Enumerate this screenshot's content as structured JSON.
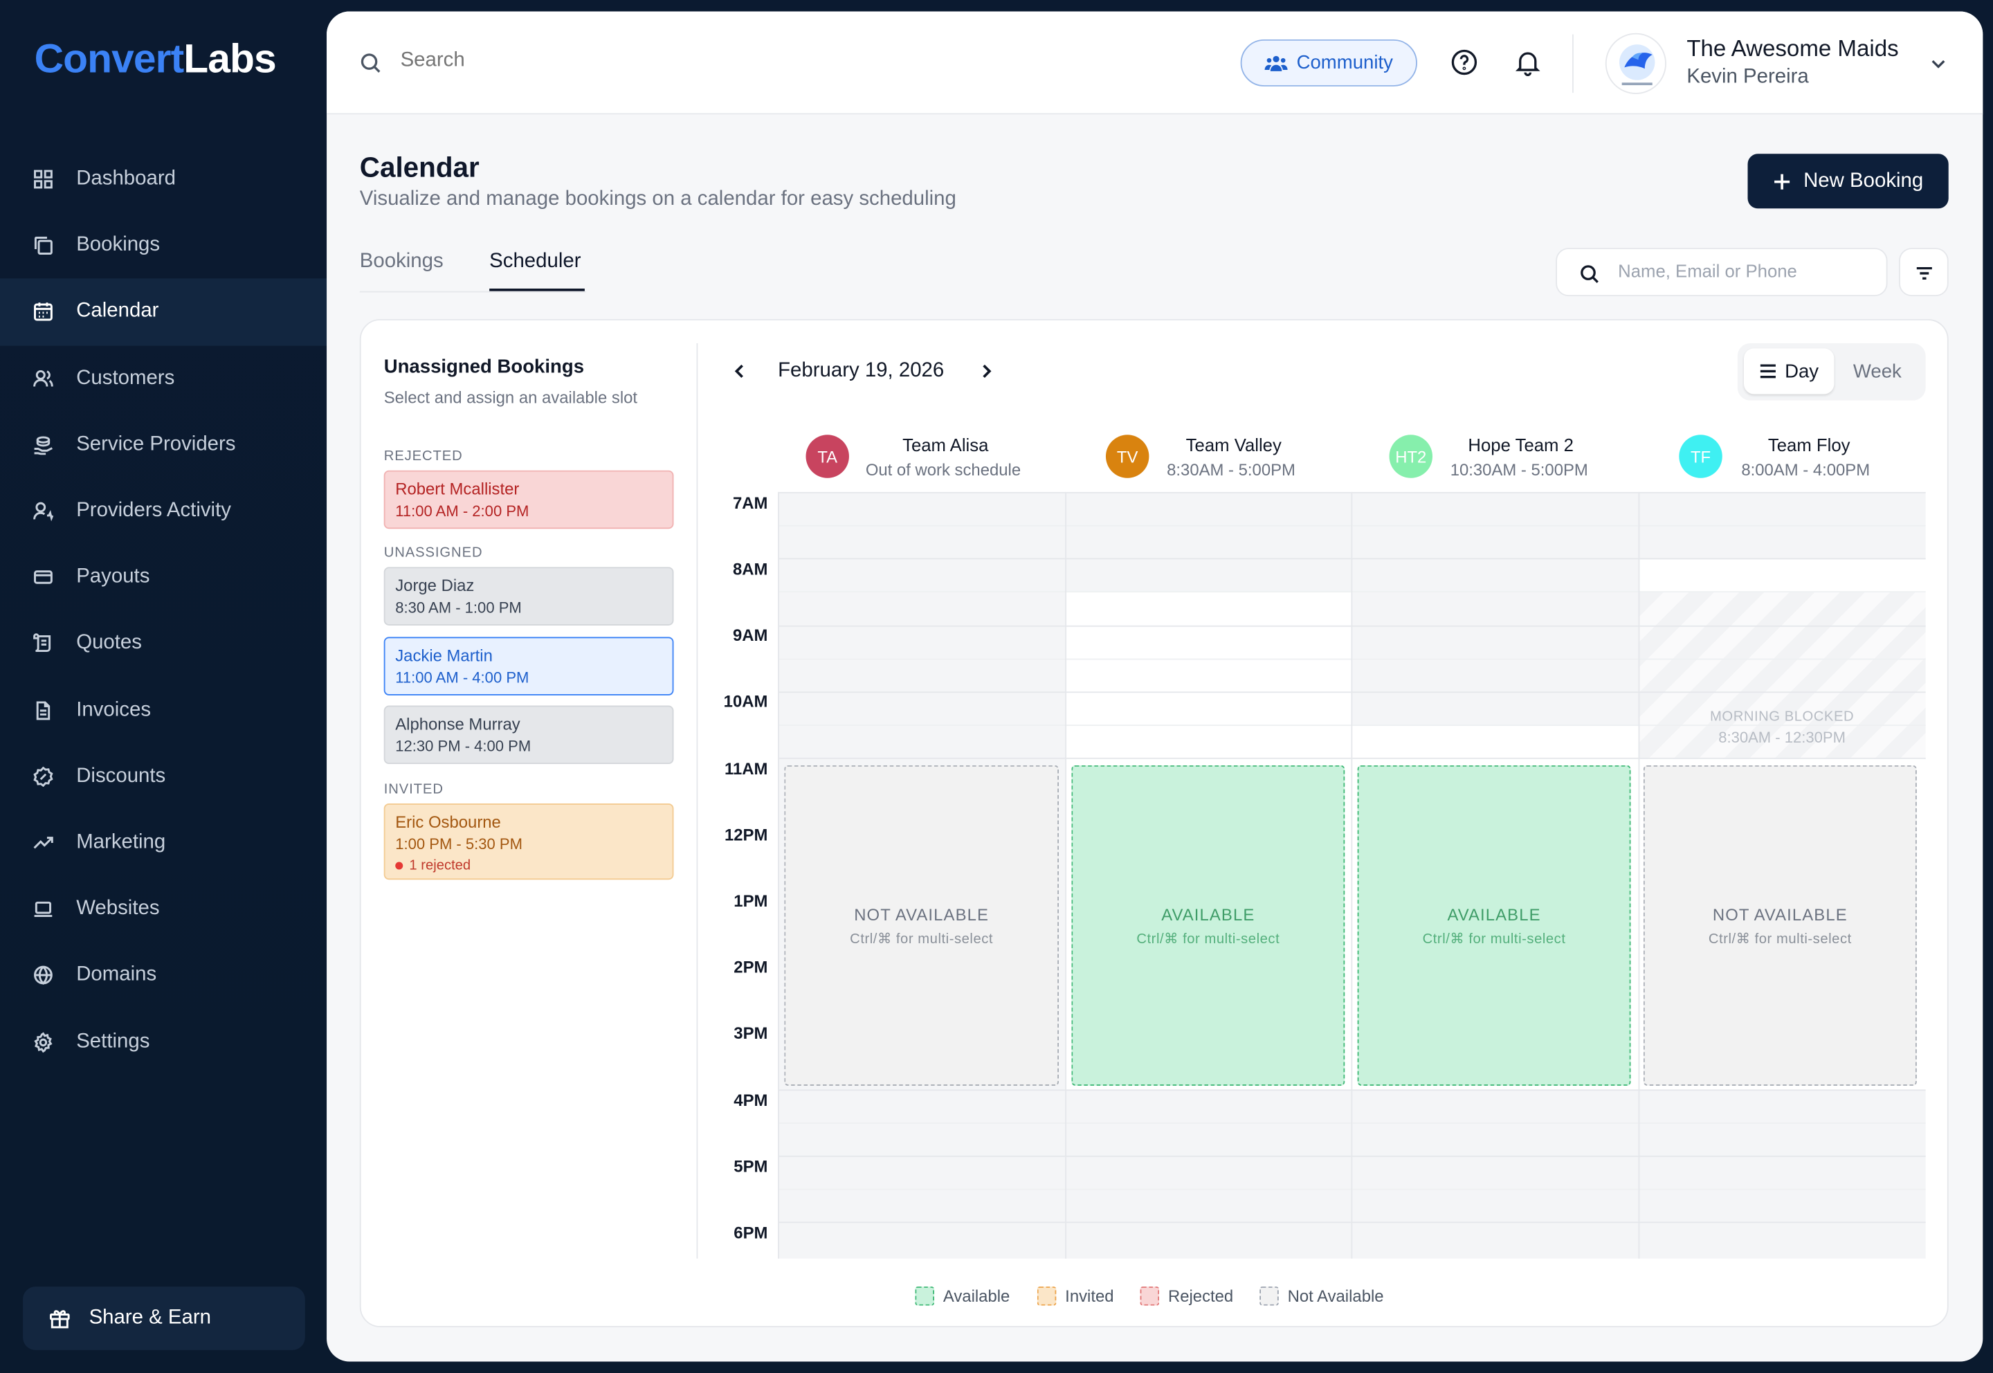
{
  "sidebar": {
    "logo_a": "Convert",
    "logo_b": "Labs",
    "items": [
      {
        "label": "Dashboard",
        "icon": "grid-icon"
      },
      {
        "label": "Bookings",
        "icon": "copy-icon"
      },
      {
        "label": "Calendar",
        "icon": "calendar-icon"
      },
      {
        "label": "Customers",
        "icon": "users-icon"
      },
      {
        "label": "Service Providers",
        "icon": "hand-coin-icon"
      },
      {
        "label": "Providers Activity",
        "icon": "user-activity-icon"
      },
      {
        "label": "Payouts",
        "icon": "card-icon"
      },
      {
        "label": "Quotes",
        "icon": "scroll-icon"
      },
      {
        "label": "Invoices",
        "icon": "file-text-icon"
      },
      {
        "label": "Discounts",
        "icon": "badge-percent-icon"
      },
      {
        "label": "Marketing",
        "icon": "trend-up-icon"
      },
      {
        "label": "Websites",
        "icon": "laptop-icon"
      },
      {
        "label": "Domains",
        "icon": "globe-icon"
      },
      {
        "label": "Settings",
        "icon": "gear-icon"
      }
    ],
    "active": "Calendar",
    "share_label": "Share & Earn"
  },
  "topbar": {
    "search_placeholder": "Search",
    "community_label": "Community",
    "org_name": "The Awesome Maids",
    "user_name": "Kevin Pereira"
  },
  "header": {
    "title": "Calendar",
    "subtitle": "Visualize and manage bookings on a calendar for easy scheduling",
    "new_booking_label": "New Booking",
    "tabs": [
      "Bookings",
      "Scheduler"
    ],
    "active_tab": "Scheduler",
    "filter_placeholder": "Name, Email or Phone"
  },
  "unassigned": {
    "title": "Unassigned Bookings",
    "subtitle": "Select and assign an available slot",
    "sections": {
      "rejected": "REJECTED",
      "unassigned": "UNASSIGNED",
      "invited": "INVITED"
    },
    "rejected": [
      {
        "name": "Robert Mcallister",
        "time": "11:00 AM - 2:00 PM"
      }
    ],
    "unassigned_list": [
      {
        "name": "Jorge Diaz",
        "time": "8:30 AM - 1:00 PM"
      },
      {
        "name": "Jackie Martin",
        "time": "11:00 AM - 4:00 PM",
        "selected": true
      },
      {
        "name": "Alphonse Murray",
        "time": "12:30 PM - 4:00 PM"
      }
    ],
    "invited": [
      {
        "name": "Eric Osbourne",
        "time": "1:00 PM - 5:30 PM",
        "badge": "1 rejected"
      }
    ]
  },
  "scheduler": {
    "date": "February 19, 2026",
    "view_day": "Day",
    "view_week": "Week",
    "hours": [
      "7AM",
      "8AM",
      "9AM",
      "10AM",
      "11AM",
      "12PM",
      "1PM",
      "2PM",
      "3PM",
      "4PM",
      "5PM",
      "6PM"
    ],
    "teams": [
      {
        "initials": "TA",
        "name": "Team Alisa",
        "hours": "Out of work schedule",
        "color": "#c8445f"
      },
      {
        "initials": "TV",
        "name": "Team Valley",
        "hours": "8:30AM - 5:00PM",
        "color": "#d9830f"
      },
      {
        "initials": "HT2",
        "name": "Hope Team 2",
        "hours": "10:30AM - 5:00PM",
        "color": "#86efac"
      },
      {
        "initials": "TF",
        "name": "Team Floy",
        "hours": "8:00AM - 4:00PM",
        "color": "#3ff0f2"
      }
    ],
    "blocked": {
      "label": "MORNING BLOCKED",
      "time": "8:30AM - 12:30PM"
    },
    "slots": [
      {
        "state": "NOT AVAILABLE",
        "hint": "Ctrl/⌘ for multi-select"
      },
      {
        "state": "AVAILABLE",
        "hint": "Ctrl/⌘ for multi-select"
      },
      {
        "state": "AVAILABLE",
        "hint": "Ctrl/⌘ for multi-select"
      },
      {
        "state": "NOT AVAILABLE",
        "hint": "Ctrl/⌘ for multi-select"
      }
    ],
    "legend": [
      "Available",
      "Invited",
      "Rejected",
      "Not Available"
    ]
  },
  "colors": {
    "sidebar_bg": "#0b1a30",
    "accent": "#3b82f6",
    "primary_button": "#0d1f3a",
    "available": "#c9f2dc",
    "invited": "#fbe6c8",
    "rejected": "#f9d6d6",
    "not_available": "#f2f2f2"
  }
}
